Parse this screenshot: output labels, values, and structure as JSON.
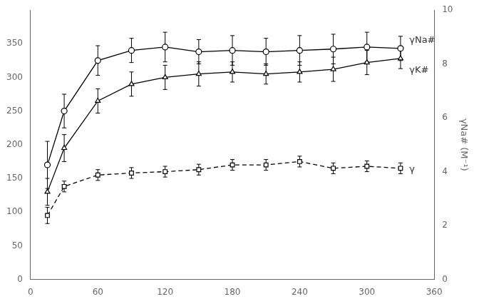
{
  "chart_data": {
    "type": "line",
    "x": [
      15,
      30,
      60,
      90,
      120,
      150,
      180,
      210,
      240,
      270,
      300,
      330
    ],
    "series": [
      {
        "color": "#000000",
        "marker": "circle",
        "line_style": "solid",
        "values": [
          170,
          250,
          325,
          340,
          345,
          338,
          340,
          338,
          340,
          342,
          345,
          343
        ],
        "errors": [
          35,
          25,
          22,
          18,
          22,
          18,
          22,
          20,
          22,
          22,
          22,
          18
        ]
      },
      {
        "color": "#000000",
        "marker": "triangle",
        "line_style": "solid",
        "values": [
          130,
          195,
          265,
          290,
          300,
          305,
          308,
          305,
          308,
          312,
          322,
          328
        ],
        "errors": [
          20,
          20,
          18,
          18,
          18,
          18,
          15,
          15,
          15,
          18,
          18,
          15
        ]
      },
      {
        "color": "#000000",
        "marker": "square",
        "line_style": "dashed",
        "values": [
          95,
          138,
          155,
          158,
          160,
          163,
          170,
          170,
          175,
          165,
          168,
          165
        ],
        "errors": [
          12,
          8,
          8,
          8,
          8,
          8,
          8,
          8,
          8,
          8,
          8,
          8
        ]
      }
    ],
    "xlim": [
      0,
      360
    ],
    "xticks": [
      0,
      60,
      120,
      180,
      240,
      300,
      360
    ],
    "ylim": [
      0,
      400
    ],
    "yticks": [
      0,
      50,
      100,
      150,
      200,
      250,
      300,
      350
    ],
    "y2lim": [
      0,
      10
    ],
    "y2ticks": [
      0,
      2,
      4,
      6,
      8,
      10
    ],
    "y2label": "γNa# (M⁻¹)",
    "annotations": [
      {
        "text": "γNa#",
        "x": 334,
        "y": 355
      },
      {
        "text": "γK#",
        "x": 334,
        "y": 310
      },
      {
        "text": "γ",
        "x": 334,
        "y": 163
      }
    ],
    "grid": false
  }
}
